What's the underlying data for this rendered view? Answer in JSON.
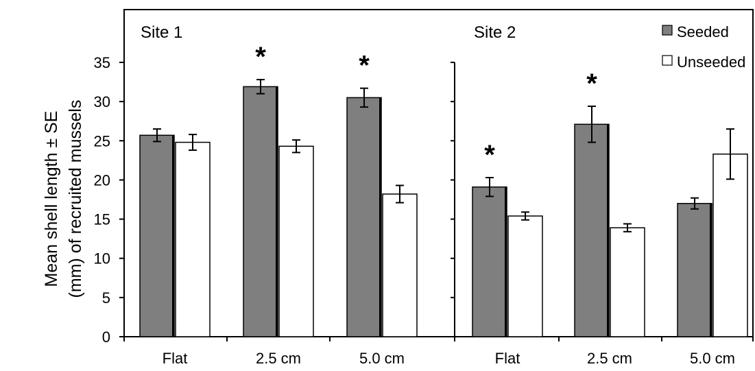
{
  "chart_data": {
    "type": "bar",
    "ylabel_line1": "Mean shell length ± SE",
    "ylabel_line2": "(mm) of recruited mussels",
    "ylim": [
      0,
      40
    ],
    "yticks": [
      0,
      5,
      10,
      15,
      20,
      25,
      30,
      35
    ],
    "legend_position": "top-right",
    "colors": {
      "Seeded": "#7f7f7f",
      "Unseeded": "#ffffff"
    },
    "series_names": [
      "Seeded",
      "Unseeded"
    ],
    "panels": [
      {
        "title": "Site 1",
        "categories": [
          "Flat",
          "2.5 cm",
          "5.0 cm"
        ],
        "series": [
          {
            "name": "Seeded",
            "values": [
              25.7,
              31.9,
              30.5
            ],
            "errors": [
              0.8,
              0.9,
              1.2
            ]
          },
          {
            "name": "Unseeded",
            "values": [
              24.8,
              24.3,
              18.2
            ],
            "errors": [
              1.0,
              0.8,
              1.1
            ]
          }
        ],
        "significant": [
          false,
          true,
          true
        ],
        "marker": "*"
      },
      {
        "title": "Site 2",
        "categories": [
          "Flat",
          "2.5 cm",
          "5.0 cm"
        ],
        "series": [
          {
            "name": "Seeded",
            "values": [
              19.1,
              27.1,
              17.0
            ],
            "errors": [
              1.2,
              2.3,
              0.7
            ]
          },
          {
            "name": "Unseeded",
            "values": [
              15.4,
              13.9,
              23.3
            ],
            "errors": [
              0.5,
              0.5,
              3.2
            ]
          }
        ],
        "significant": [
          true,
          true,
          false
        ],
        "marker": "*"
      }
    ]
  }
}
